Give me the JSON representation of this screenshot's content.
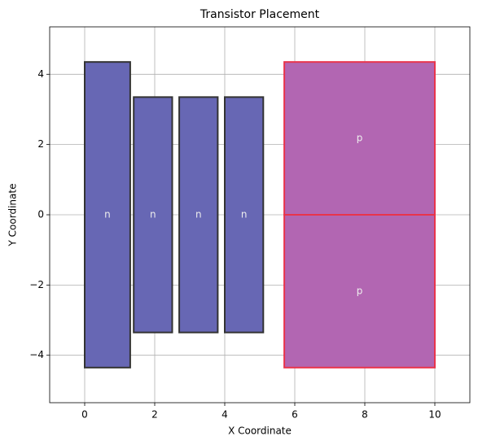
{
  "chart_data": {
    "type": "rectangles",
    "title": "Transistor Placement",
    "xlabel": "X Coordinate",
    "ylabel": "Y Coordinate",
    "xlim": [
      -1,
      11
    ],
    "ylim": [
      -5.35,
      5.35
    ],
    "xticks": [
      0,
      2,
      4,
      6,
      8,
      10
    ],
    "yticks": [
      {
        "value": -4,
        "label": "−4"
      },
      {
        "value": -2,
        "label": "−2"
      },
      0,
      2,
      4
    ],
    "grid": true,
    "rects": [
      {
        "label": "n",
        "x": 0,
        "y": -4.35,
        "width": 1.3,
        "height": 8.7,
        "fill": "#6767b4",
        "edge": "#333333"
      },
      {
        "label": "n",
        "x": 1.4,
        "y": -3.35,
        "width": 1.1,
        "height": 6.7,
        "fill": "#6767b4",
        "edge": "#333333"
      },
      {
        "label": "n",
        "x": 2.7,
        "y": -3.35,
        "width": 1.1,
        "height": 6.7,
        "fill": "#6767b4",
        "edge": "#333333"
      },
      {
        "label": "n",
        "x": 4.0,
        "y": -3.35,
        "width": 1.1,
        "height": 6.7,
        "fill": "#6767b4",
        "edge": "#333333"
      },
      {
        "label": "p",
        "x": 5.7,
        "y": 0,
        "width": 4.3,
        "height": 4.35,
        "fill": "#b266b2",
        "edge": "#e8344c"
      },
      {
        "label": "p",
        "x": 5.7,
        "y": -4.35,
        "width": 4.3,
        "height": 4.35,
        "fill": "#b266b2",
        "edge": "#e8344c"
      }
    ]
  }
}
